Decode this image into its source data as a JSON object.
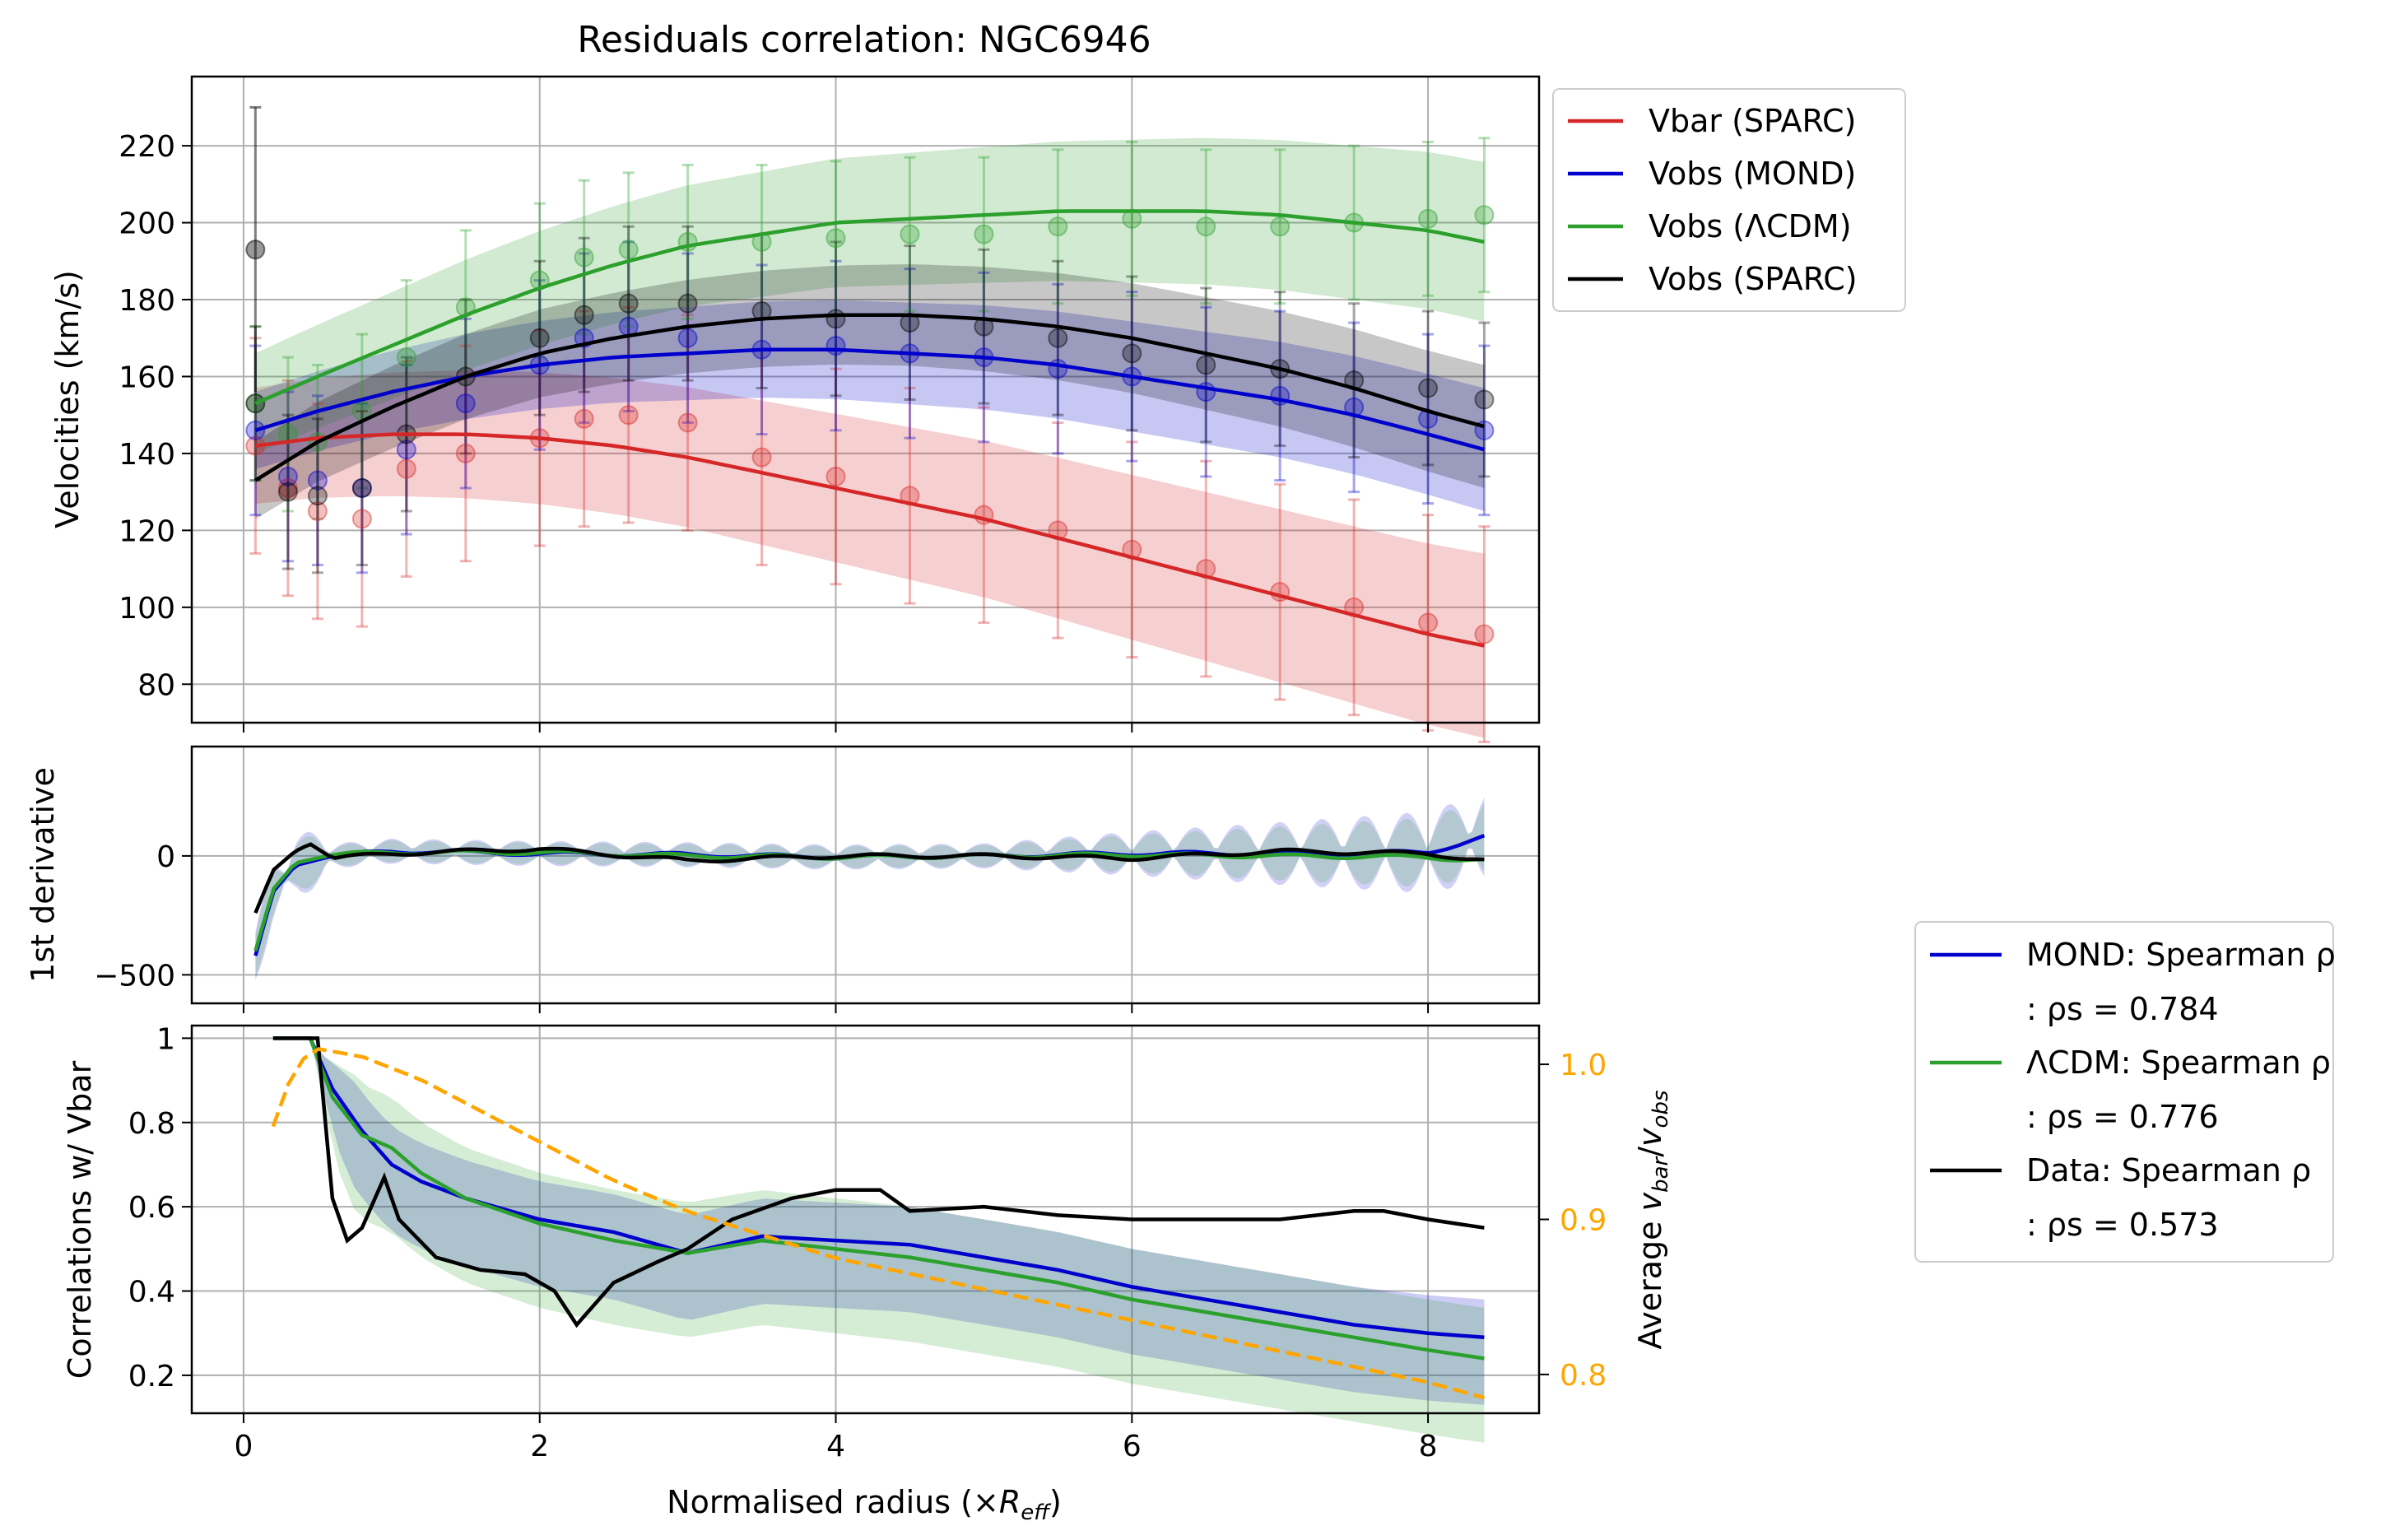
{
  "chart_data": [
    {
      "type": "line",
      "panel": "velocities",
      "title": "Residuals correlation: NGC6946",
      "xlabel": "",
      "ylabel": "Velocities (km/s)",
      "xlim": [
        -0.35,
        8.75
      ],
      "ylim": [
        70,
        238
      ],
      "xticks": [
        0,
        2,
        4,
        6,
        8
      ],
      "yticks": [
        80,
        100,
        120,
        140,
        160,
        180,
        200,
        220
      ],
      "grid": true,
      "legend_position": "outside-top-right",
      "series": [
        {
          "name": "Vbar (SPARC)",
          "color": "#d62728",
          "x": [
            0.08,
            0.5,
            1,
            1.5,
            2,
            2.5,
            3,
            3.5,
            4,
            4.5,
            5,
            5.5,
            6,
            6.5,
            7,
            7.5,
            8,
            8.38
          ],
          "values": [
            142,
            144,
            145,
            145,
            144,
            142,
            139,
            135,
            131,
            127,
            123,
            118,
            113,
            108,
            103,
            98,
            93,
            90
          ],
          "points_x": [
            0.08,
            0.3,
            0.5,
            0.8,
            1.1,
            1.5,
            2.0,
            2.3,
            2.6,
            3.0,
            3.5,
            4.0,
            4.5,
            5.0,
            5.5,
            6.0,
            6.5,
            7.0,
            7.5,
            8.0,
            8.38
          ],
          "points_y": [
            142,
            131,
            125,
            123,
            136,
            140,
            144,
            149,
            150,
            148,
            139,
            134,
            129,
            124,
            120,
            115,
            110,
            104,
            100,
            96,
            93
          ]
        },
        {
          "name": "Vobs (MOND)",
          "color": "#0000cc",
          "x": [
            0.08,
            0.5,
            1,
            1.5,
            2,
            2.5,
            3,
            3.5,
            4,
            4.5,
            5,
            5.5,
            6,
            6.5,
            7,
            7.5,
            8,
            8.38
          ],
          "values": [
            146,
            151,
            156,
            160,
            163,
            165,
            166,
            167,
            167,
            166,
            165,
            163,
            160,
            157,
            154,
            150,
            145,
            141
          ],
          "points_x": [
            0.08,
            0.3,
            0.5,
            0.8,
            1.1,
            1.5,
            2.0,
            2.3,
            2.6,
            3.0,
            3.5,
            4.0,
            4.5,
            5.0,
            5.5,
            6.0,
            6.5,
            7.0,
            7.5,
            8.0,
            8.38
          ],
          "points_y": [
            146,
            134,
            133,
            131,
            141,
            153,
            163,
            170,
            173,
            170,
            167,
            168,
            166,
            165,
            162,
            160,
            156,
            155,
            152,
            149,
            146
          ]
        },
        {
          "name": "Vobs (ΛCDM)",
          "color": "#2ca02c",
          "x": [
            0.08,
            0.5,
            1,
            1.5,
            2,
            2.5,
            3,
            3.5,
            4,
            4.5,
            5,
            5.5,
            6,
            6.5,
            7,
            7.5,
            8,
            8.38
          ],
          "values": [
            153,
            160,
            168,
            176,
            183,
            189,
            194,
            197,
            200,
            201,
            202,
            203,
            203,
            203,
            202,
            200,
            198,
            195
          ],
          "points_x": [
            0.08,
            0.3,
            0.5,
            0.8,
            1.1,
            1.5,
            2.0,
            2.3,
            2.6,
            3.0,
            3.5,
            4.0,
            4.5,
            5.0,
            5.5,
            6.0,
            6.5,
            7.0,
            7.5,
            8.0,
            8.38
          ],
          "points_y": [
            153,
            145,
            143,
            151,
            165,
            178,
            185,
            191,
            193,
            195,
            195,
            196,
            197,
            197,
            199,
            201,
            199,
            199,
            200,
            201,
            202
          ]
        },
        {
          "name": "Vobs (SPARC)",
          "color": "#000000",
          "x": [
            0.08,
            0.5,
            1,
            1.5,
            2,
            2.5,
            3,
            3.5,
            4,
            4.5,
            5,
            5.5,
            6,
            6.5,
            7,
            7.5,
            8,
            8.38
          ],
          "values": [
            133,
            143,
            152,
            160,
            166,
            170,
            173,
            175,
            176,
            176,
            175,
            173,
            170,
            166,
            162,
            157,
            151,
            147
          ],
          "points_x": [
            0.08,
            0.3,
            0.5,
            0.8,
            1.1,
            1.5,
            2.0,
            2.3,
            2.6,
            3.0,
            3.5,
            4.0,
            4.5,
            5.0,
            5.5,
            6.0,
            6.5,
            7.0,
            7.5,
            8.0,
            8.38
          ],
          "points_y": [
            153,
            130,
            129,
            131,
            145,
            160,
            170,
            176,
            179,
            179,
            177,
            175,
            174,
            173,
            170,
            166,
            163,
            162,
            159,
            157,
            154
          ]
        }
      ],
      "outliers": [
        {
          "series": "Vobs (SPARC)",
          "x": 0.08,
          "y": 193
        }
      ]
    },
    {
      "type": "line",
      "panel": "derivative",
      "ylabel": "1st derivative",
      "xlim": [
        -0.35,
        8.75
      ],
      "ylim": [
        -620,
        460
      ],
      "xticks": [
        0,
        2,
        4,
        6,
        8
      ],
      "yticks": [
        -500,
        0
      ],
      "ytick_labels": [
        "−500",
        "0"
      ],
      "grid": true,
      "series": [
        {
          "name": "MOND",
          "color": "#0000cc",
          "x": [
            0.08,
            0.2,
            0.35,
            0.6,
            1,
            2,
            3,
            4,
            5,
            6,
            7,
            8,
            8.38
          ],
          "values": [
            -420,
            -150,
            -40,
            0,
            20,
            10,
            5,
            -5,
            0,
            10,
            10,
            15,
            80
          ]
        },
        {
          "name": "ΛCDM",
          "color": "#2ca02c",
          "x": [
            0.08,
            0.2,
            0.35,
            0.6,
            1,
            2,
            3,
            4,
            5,
            6,
            7,
            8,
            8.38
          ],
          "values": [
            -400,
            -140,
            -30,
            5,
            15,
            15,
            0,
            -5,
            0,
            5,
            0,
            -5,
            -20
          ]
        },
        {
          "name": "Data",
          "color": "#000000",
          "x": [
            0.08,
            0.2,
            0.35,
            0.45,
            0.6,
            1,
            2,
            3,
            4,
            5,
            6,
            7,
            8,
            8.38
          ],
          "values": [
            -240,
            -60,
            20,
            50,
            -10,
            10,
            30,
            -20,
            0,
            0,
            -10,
            20,
            10,
            -20
          ]
        }
      ]
    },
    {
      "type": "line",
      "panel": "correlations",
      "xlabel": "Normalised radius (×R_eff)",
      "ylabel": "Correlations w/ Vbar",
      "ylabel_right": "Average v_bar/v_obs",
      "xlim": [
        -0.35,
        8.75
      ],
      "ylim": [
        0.11,
        1.03
      ],
      "ylim_right": [
        0.775,
        1.025
      ],
      "xticks": [
        0,
        2,
        4,
        6,
        8
      ],
      "yticks": [
        0.2,
        0.4,
        0.6,
        0.8,
        1.0
      ],
      "yticks_right": [
        0.8,
        0.9,
        1.0
      ],
      "grid": true,
      "legend_position": "outside-right",
      "series": [
        {
          "name": "MOND: Spearman ρ",
          "legend_value": ": ρs = 0.784",
          "color": "#0000cc",
          "x": [
            0.2,
            0.45,
            0.6,
            0.8,
            1.0,
            1.2,
            1.5,
            2.0,
            2.5,
            3.0,
            3.5,
            4.0,
            4.5,
            5.0,
            5.5,
            6.0,
            6.5,
            7.0,
            7.5,
            8.0,
            8.38
          ],
          "values": [
            1.0,
            1.0,
            0.88,
            0.78,
            0.7,
            0.66,
            0.62,
            0.57,
            0.54,
            0.49,
            0.53,
            0.52,
            0.51,
            0.48,
            0.45,
            0.41,
            0.38,
            0.35,
            0.32,
            0.3,
            0.29
          ]
        },
        {
          "name": "ΛCDM: Spearman ρ",
          "legend_value": ": ρs = 0.776",
          "color": "#2ca02c",
          "x": [
            0.2,
            0.45,
            0.6,
            0.8,
            1.0,
            1.2,
            1.5,
            2.0,
            2.5,
            3.0,
            3.5,
            4.0,
            4.5,
            5.0,
            5.5,
            6.0,
            6.5,
            7.0,
            7.5,
            8.0,
            8.38
          ],
          "values": [
            1.0,
            1.0,
            0.86,
            0.77,
            0.74,
            0.68,
            0.62,
            0.56,
            0.52,
            0.49,
            0.52,
            0.5,
            0.48,
            0.45,
            0.42,
            0.38,
            0.35,
            0.32,
            0.29,
            0.26,
            0.24
          ]
        },
        {
          "name": "Data: Spearman ρ",
          "legend_value": ": ρs = 0.573",
          "color": "#000000",
          "x": [
            0.2,
            0.5,
            0.6,
            0.7,
            0.8,
            0.95,
            1.05,
            1.3,
            1.6,
            1.9,
            2.1,
            2.25,
            2.5,
            2.8,
            3.0,
            3.3,
            3.7,
            4.0,
            4.3,
            4.5,
            5.0,
            5.5,
            6.0,
            6.5,
            7.0,
            7.5,
            7.7,
            8.0,
            8.38
          ],
          "values": [
            1.0,
            1.0,
            0.62,
            0.52,
            0.55,
            0.67,
            0.57,
            0.48,
            0.45,
            0.44,
            0.4,
            0.32,
            0.42,
            0.47,
            0.5,
            0.57,
            0.62,
            0.64,
            0.64,
            0.59,
            0.6,
            0.58,
            0.57,
            0.57,
            0.57,
            0.59,
            0.59,
            0.57,
            0.55
          ]
        },
        {
          "name": "",
          "color": "#ffa500",
          "axis": "right",
          "style": "dashed",
          "x": [
            0.2,
            0.35,
            0.5,
            0.8,
            1.2,
            1.6,
            2.0,
            2.5,
            3.0,
            3.5,
            4.0,
            4.5,
            5.0,
            5.5,
            6.0,
            6.5,
            7.0,
            7.5,
            8.0,
            8.38
          ],
          "values": [
            0.96,
            1.0,
            1.01,
            1.005,
            0.99,
            0.97,
            0.95,
            0.925,
            0.905,
            0.89,
            0.875,
            0.865,
            0.855,
            0.845,
            0.835,
            0.825,
            0.815,
            0.805,
            0.795,
            0.785
          ]
        }
      ]
    }
  ]
}
